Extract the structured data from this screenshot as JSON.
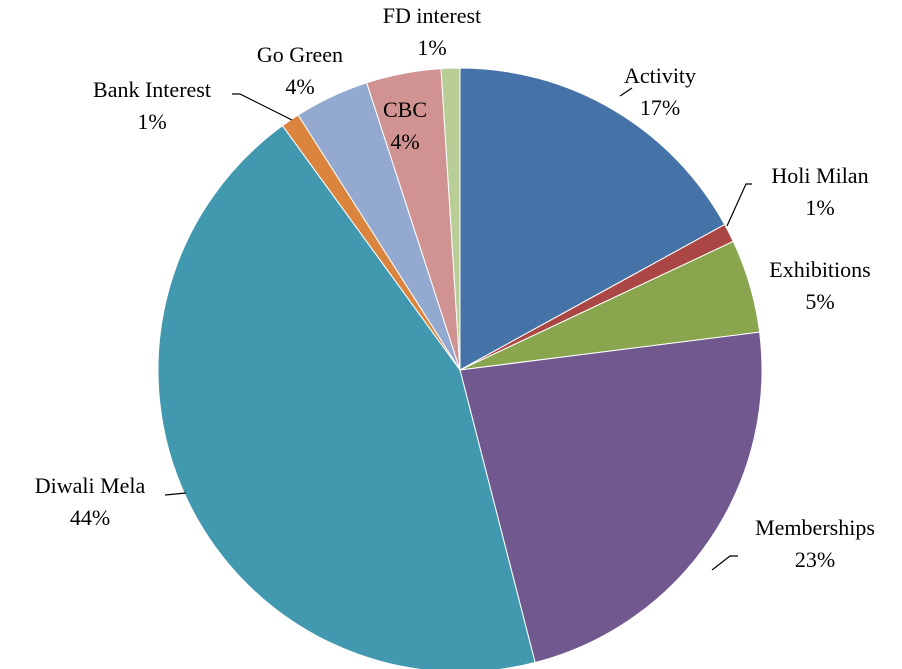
{
  "chart_data": {
    "type": "pie",
    "categories": [
      "Activity",
      "Holi Milan",
      "Exhibitions",
      "Memberships",
      "Diwali Mela",
      "Bank Interest",
      "Go Green",
      "CBC",
      "FD interest"
    ],
    "values": [
      17,
      1,
      5,
      23,
      44,
      1,
      4,
      4,
      1
    ],
    "value_labels": [
      "17%",
      "1%",
      "5%",
      "23%",
      "44%",
      "1%",
      "4%",
      "4%",
      "1%"
    ],
    "colors": [
      "#4572a7",
      "#aa4643",
      "#89a54e",
      "#71588f",
      "#4198af",
      "#db843d",
      "#93a9cf",
      "#d19392",
      "#b9cd96"
    ]
  }
}
